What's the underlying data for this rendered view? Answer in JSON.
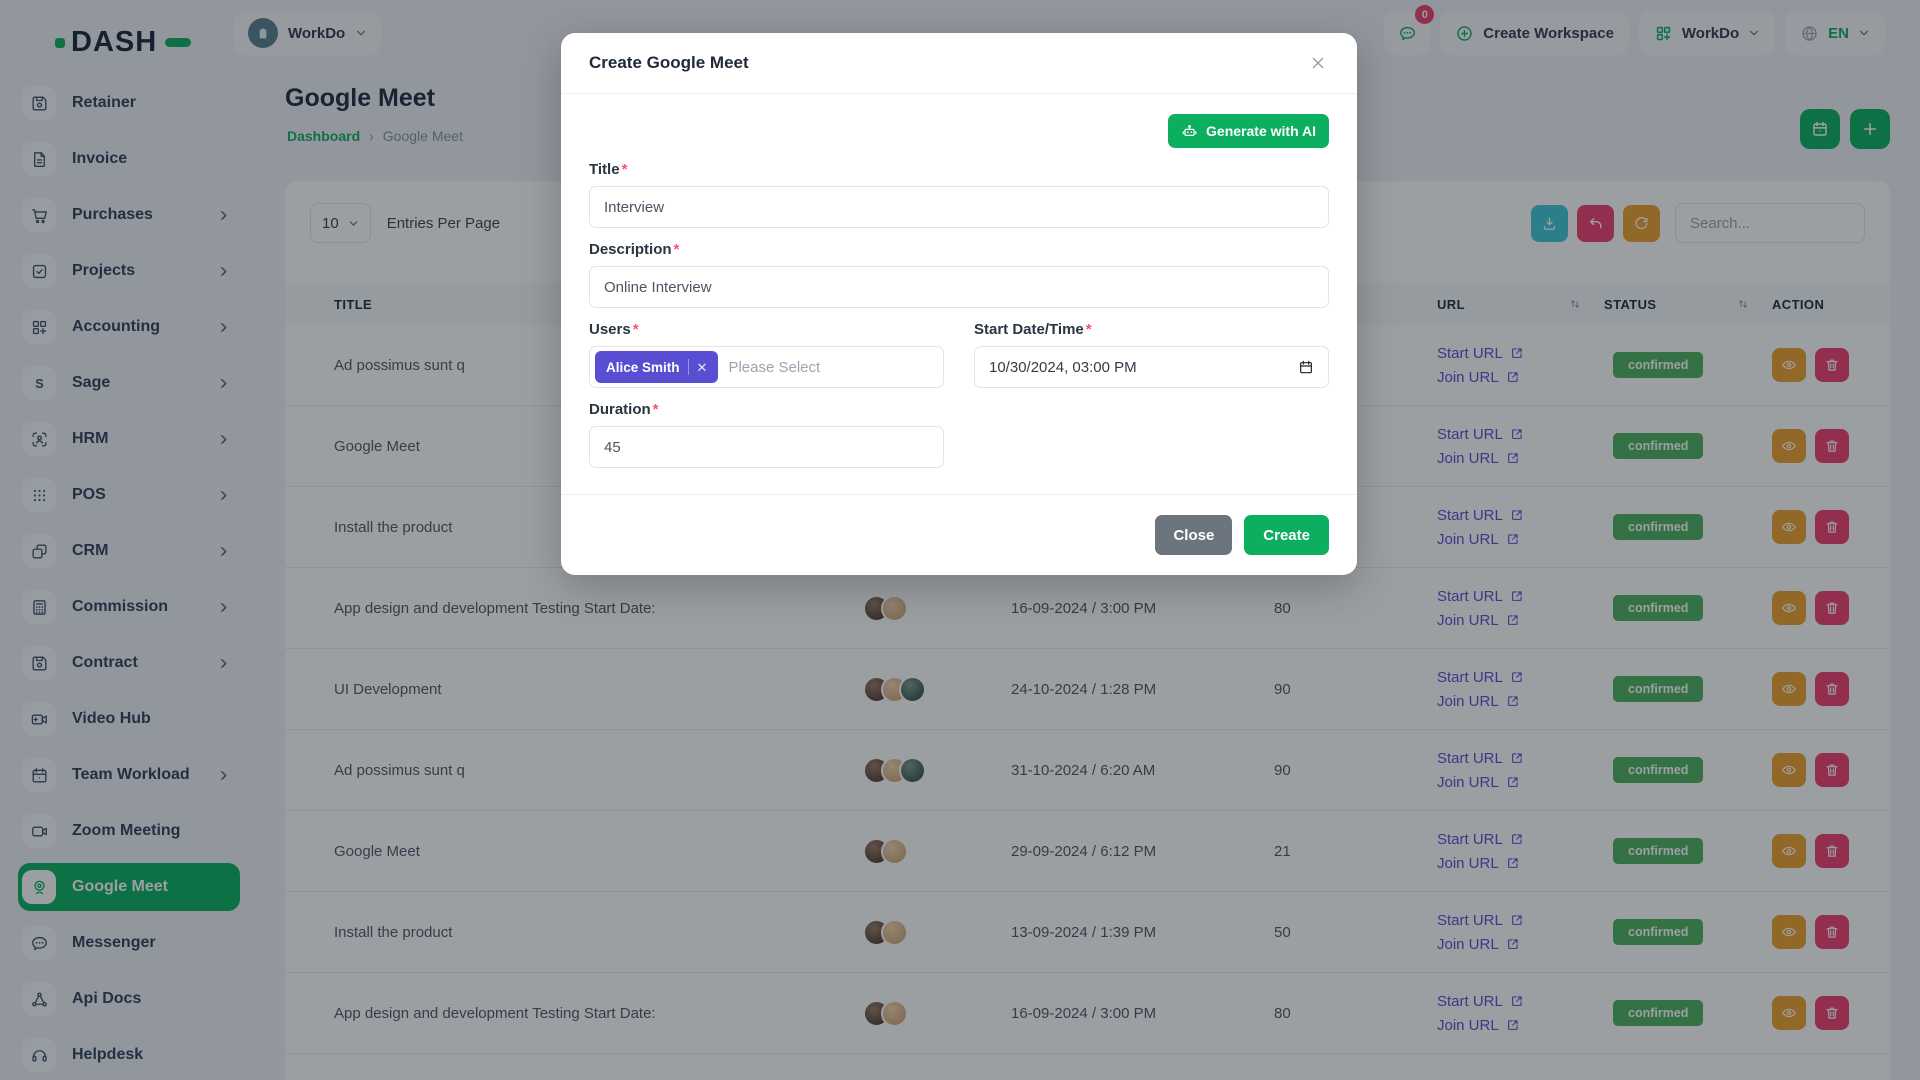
{
  "brand": {
    "logo_text": "DASH"
  },
  "topbar": {
    "workspace_name": "WorkDo",
    "notification_count": "0",
    "create_workspace_label": "Create Workspace",
    "app_switcher_label": "WorkDo",
    "language": "EN"
  },
  "sidebar": {
    "items": [
      {
        "label": "Retainer",
        "icon": "retainer-icon",
        "chevron": false,
        "active": false
      },
      {
        "label": "Invoice",
        "icon": "invoice-icon",
        "chevron": false,
        "active": false
      },
      {
        "label": "Purchases",
        "icon": "purchases-icon",
        "chevron": true,
        "active": false
      },
      {
        "label": "Projects",
        "icon": "projects-icon",
        "chevron": true,
        "active": false
      },
      {
        "label": "Accounting",
        "icon": "accounting-icon",
        "chevron": true,
        "active": false
      },
      {
        "label": "Sage",
        "icon": "sage-icon",
        "chevron": true,
        "active": false
      },
      {
        "label": "HRM",
        "icon": "hrm-icon",
        "chevron": true,
        "active": false
      },
      {
        "label": "POS",
        "icon": "pos-icon",
        "chevron": true,
        "active": false
      },
      {
        "label": "CRM",
        "icon": "crm-icon",
        "chevron": true,
        "active": false
      },
      {
        "label": "Commission",
        "icon": "commission-icon",
        "chevron": true,
        "active": false
      },
      {
        "label": "Contract",
        "icon": "contract-icon",
        "chevron": true,
        "active": false
      },
      {
        "label": "Video Hub",
        "icon": "video-hub-icon",
        "chevron": false,
        "active": false
      },
      {
        "label": "Team Workload",
        "icon": "team-workload-icon",
        "chevron": true,
        "active": false
      },
      {
        "label": "Zoom Meeting",
        "icon": "zoom-meeting-icon",
        "chevron": false,
        "active": false
      },
      {
        "label": "Google Meet",
        "icon": "google-meet-icon",
        "chevron": false,
        "active": true
      },
      {
        "label": "Messenger",
        "icon": "messenger-icon",
        "chevron": false,
        "active": false
      },
      {
        "label": "Api Docs",
        "icon": "api-docs-icon",
        "chevron": false,
        "active": false
      },
      {
        "label": "Helpdesk",
        "icon": "helpdesk-icon",
        "chevron": false,
        "active": false
      }
    ]
  },
  "page": {
    "title": "Google Meet",
    "breadcrumb": {
      "home": "Dashboard",
      "current": "Google Meet"
    }
  },
  "toolbar": {
    "per_page": "10",
    "entries_label": "Entries Per Page",
    "search_placeholder": "Search..."
  },
  "table": {
    "headers": [
      {
        "label": "TITLE",
        "sortable": false
      },
      {
        "label": "",
        "sortable": false
      },
      {
        "label": "",
        "sortable": false
      },
      {
        "label": "",
        "sortable": false
      },
      {
        "label": "URL",
        "sortable": true
      },
      {
        "label": "STATUS",
        "sortable": true
      },
      {
        "label": "ACTION",
        "sortable": false
      }
    ],
    "rows": [
      {
        "title": "Ad possimus sunt q",
        "avatars": 0,
        "datetime": "",
        "duration": "",
        "start_url": "Start URL",
        "join_url": "Join URL",
        "status": "confirmed"
      },
      {
        "title": "Google Meet",
        "avatars": 0,
        "datetime": "",
        "duration": "",
        "start_url": "Start URL",
        "join_url": "Join URL",
        "status": "confirmed"
      },
      {
        "title": "Install the product",
        "avatars": 0,
        "datetime": "",
        "duration": "",
        "start_url": "Start URL",
        "join_url": "Join URL",
        "status": "confirmed"
      },
      {
        "title": "App design and development Testing Start Date:",
        "avatars": 2,
        "datetime": "16-09-2024 / 3:00 PM",
        "duration": "80",
        "start_url": "Start URL",
        "join_url": "Join URL",
        "status": "confirmed"
      },
      {
        "title": "UI Development",
        "avatars": 3,
        "datetime": "24-10-2024 / 1:28 PM",
        "duration": "90",
        "start_url": "Start URL",
        "join_url": "Join URL",
        "status": "confirmed"
      },
      {
        "title": "Ad possimus sunt q",
        "avatars": 3,
        "datetime": "31-10-2024 / 6:20 AM",
        "duration": "90",
        "start_url": "Start URL",
        "join_url": "Join URL",
        "status": "confirmed"
      },
      {
        "title": "Google Meet",
        "avatars": 2,
        "datetime": "29-09-2024 / 6:12 PM",
        "duration": "21",
        "start_url": "Start URL",
        "join_url": "Join URL",
        "status": "confirmed"
      },
      {
        "title": "Install the product",
        "avatars": 2,
        "datetime": "13-09-2024 / 1:39 PM",
        "duration": "50",
        "start_url": "Start URL",
        "join_url": "Join URL",
        "status": "confirmed"
      },
      {
        "title": "App design and development Testing Start Date:",
        "avatars": 2,
        "datetime": "16-09-2024 / 3:00 PM",
        "duration": "80",
        "start_url": "Start URL",
        "join_url": "Join URL",
        "status": "confirmed"
      }
    ]
  },
  "modal": {
    "title": "Create Google Meet",
    "generate_ai_label": "Generate with AI",
    "title_field": {
      "label": "Title",
      "value": "Interview"
    },
    "description_field": {
      "label": "Description",
      "value": "Online Interview"
    },
    "users_field": {
      "label": "Users",
      "selected_user": "Alice Smith",
      "placeholder": "Please Select"
    },
    "start_field": {
      "label": "Start Date/Time",
      "value": "10/30/2024, 03:00 PM"
    },
    "duration_field": {
      "label": "Duration",
      "value": "45"
    },
    "close_label": "Close",
    "create_label": "Create"
  },
  "colors": {
    "primary": "#0CAF60",
    "info": "#3EC9D6",
    "danger": "#EF3F6E",
    "warning": "#EEA02D",
    "purple": "#584ED2",
    "badge": "#4CB05E"
  }
}
